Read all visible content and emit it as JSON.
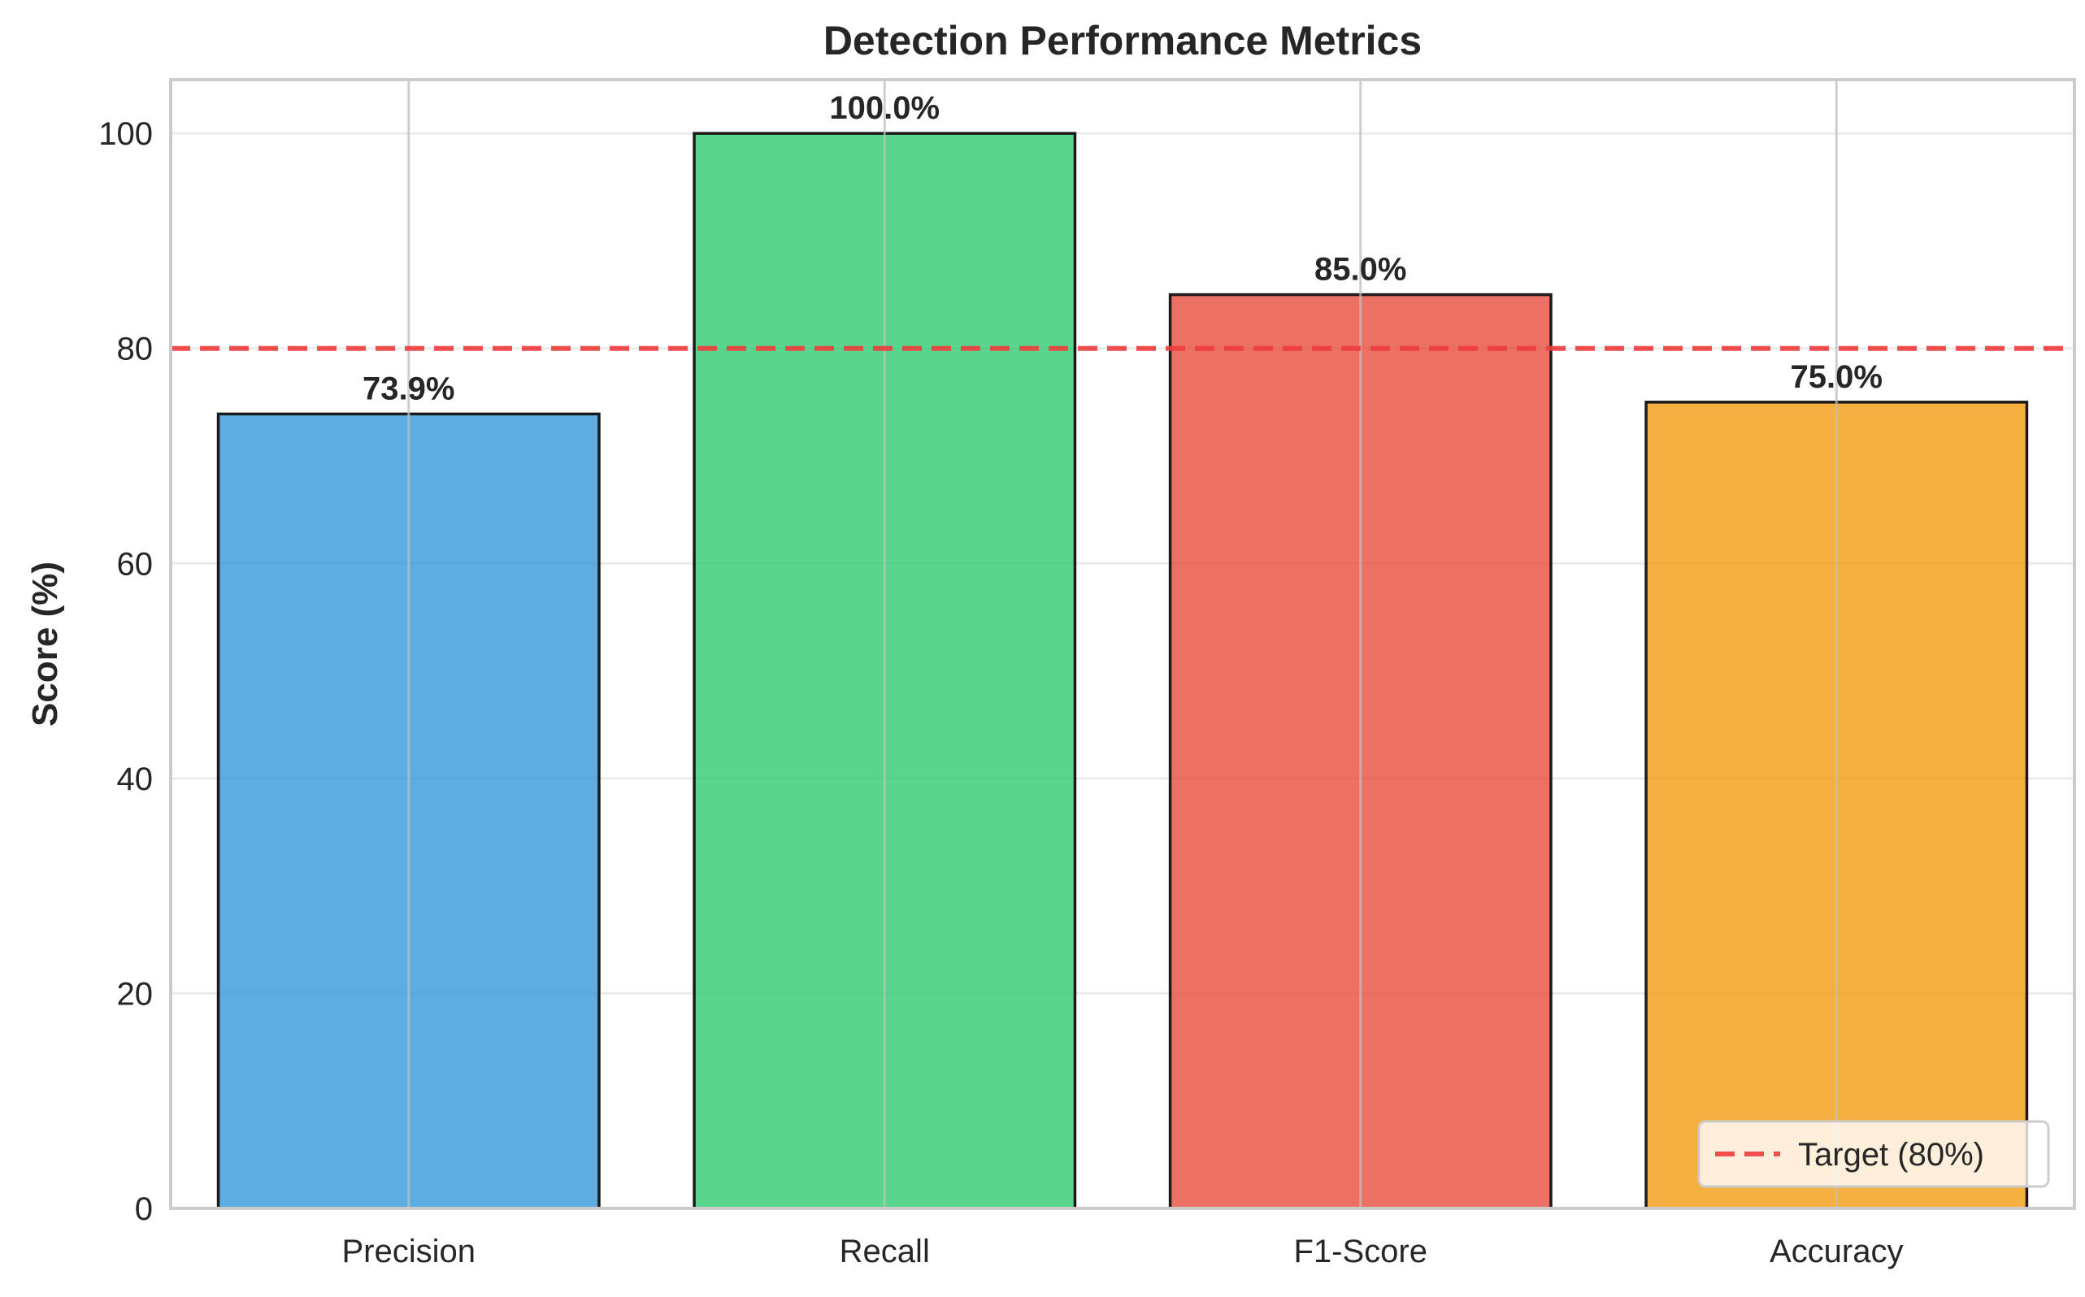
{
  "chart_data": {
    "type": "bar",
    "title": "Detection Performance Metrics",
    "xlabel": "",
    "ylabel": "Score (%)",
    "ylim": [
      0,
      105
    ],
    "yticks": [
      0,
      20,
      40,
      60,
      80,
      100
    ],
    "categories": [
      "Precision",
      "Recall",
      "F1-Score",
      "Accuracy"
    ],
    "values": [
      73.9,
      100.0,
      85.0,
      75.0
    ],
    "data_labels": [
      "73.9%",
      "100.0%",
      "85.0%",
      "75.0%"
    ],
    "colors": [
      "#3498db",
      "#2ecc71",
      "#e74c3c",
      "#f39c12"
    ],
    "bar_edge_color": "#1a1a1a",
    "grid": true,
    "reference_line": {
      "value": 80,
      "label": "Target (80%)",
      "color": "#f03c3c",
      "style": "dashed"
    },
    "legend": {
      "entries": [
        "Target (80%)"
      ],
      "placement": "bottom-right"
    }
  }
}
